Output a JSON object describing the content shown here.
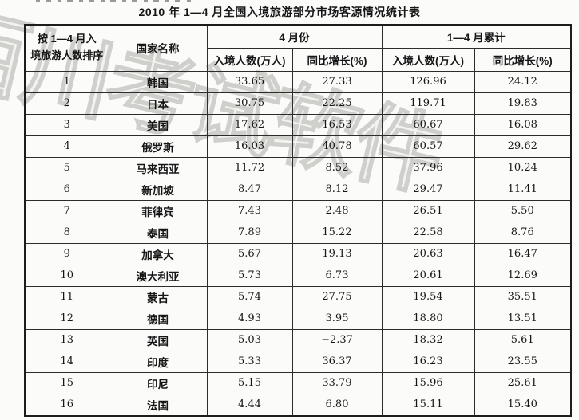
{
  "page": {
    "title": "2010 年 1—4 月全国入境旅游部分市场客源情况统计表",
    "watermark": "百川考试软件"
  },
  "table": {
    "header": {
      "rank_line1": "按 1—4 月入",
      "rank_line2": "境旅游人数排序",
      "country": "国家名称",
      "april": "4 月份",
      "cumulative": "1—4 月累计",
      "arrivals": "入境人数(万人)",
      "growth": "同比增长(%)"
    },
    "rows": [
      {
        "rank": "1",
        "country": "韩国",
        "april_arrivals": "33.65",
        "april_growth": "27.33",
        "cum_arrivals": "126.96",
        "cum_growth": "24.12"
      },
      {
        "rank": "2",
        "country": "日本",
        "april_arrivals": "30.75",
        "april_growth": "22.25",
        "cum_arrivals": "119.71",
        "cum_growth": "19.83"
      },
      {
        "rank": "3",
        "country": "美国",
        "april_arrivals": "17.62",
        "april_growth": "16.53",
        "cum_arrivals": "60.67",
        "cum_growth": "16.08"
      },
      {
        "rank": "4",
        "country": "俄罗斯",
        "april_arrivals": "16.03",
        "april_growth": "40.78",
        "cum_arrivals": "60.57",
        "cum_growth": "29.62"
      },
      {
        "rank": "5",
        "country": "马来西亚",
        "april_arrivals": "11.72",
        "april_growth": "8.52",
        "cum_arrivals": "37.96",
        "cum_growth": "10.24"
      },
      {
        "rank": "6",
        "country": "新加坡",
        "april_arrivals": "8.47",
        "april_growth": "8.12",
        "cum_arrivals": "29.47",
        "cum_growth": "11.41"
      },
      {
        "rank": "7",
        "country": "菲律宾",
        "april_arrivals": "7.43",
        "april_growth": "2.48",
        "cum_arrivals": "26.51",
        "cum_growth": "5.50"
      },
      {
        "rank": "8",
        "country": "泰国",
        "april_arrivals": "7.89",
        "april_growth": "15.22",
        "cum_arrivals": "22.58",
        "cum_growth": "8.76"
      },
      {
        "rank": "9",
        "country": "加拿大",
        "april_arrivals": "5.67",
        "april_growth": "19.13",
        "cum_arrivals": "20.63",
        "cum_growth": "16.47"
      },
      {
        "rank": "10",
        "country": "澳大利亚",
        "april_arrivals": "5.73",
        "april_growth": "6.73",
        "cum_arrivals": "20.61",
        "cum_growth": "12.69"
      },
      {
        "rank": "11",
        "country": "蒙古",
        "april_arrivals": "5.74",
        "april_growth": "27.75",
        "cum_arrivals": "19.54",
        "cum_growth": "35.51"
      },
      {
        "rank": "12",
        "country": "德国",
        "april_arrivals": "4.93",
        "april_growth": "3.95",
        "cum_arrivals": "18.80",
        "cum_growth": "13.51"
      },
      {
        "rank": "13",
        "country": "英国",
        "april_arrivals": "5.03",
        "april_growth": "−2.37",
        "cum_arrivals": "18.32",
        "cum_growth": "5.61"
      },
      {
        "rank": "14",
        "country": "印度",
        "april_arrivals": "5.33",
        "april_growth": "36.37",
        "cum_arrivals": "16.23",
        "cum_growth": "23.55"
      },
      {
        "rank": "15",
        "country": "印尼",
        "april_arrivals": "5.15",
        "april_growth": "33.79",
        "cum_arrivals": "15.96",
        "cum_growth": "25.61"
      },
      {
        "rank": "16",
        "country": "法国",
        "april_arrivals": "4.44",
        "april_growth": "6.80",
        "cum_arrivals": "15.11",
        "cum_growth": "15.40"
      }
    ]
  }
}
